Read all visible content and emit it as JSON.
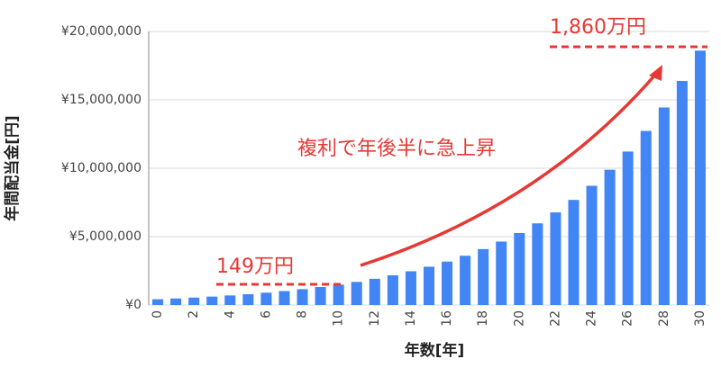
{
  "chart_data": {
    "type": "bar",
    "xlabel": "年数[年]",
    "ylabel": "年間配当金[円]",
    "annotations": [
      "149万円",
      "1,860万円",
      "複利で年後半に急上昇"
    ],
    "categories": [
      "0",
      null,
      "2",
      null,
      "4",
      null,
      "6",
      null,
      "8",
      null,
      "10",
      null,
      "12",
      null,
      "14",
      null,
      "16",
      null,
      "18",
      null,
      "20",
      null,
      "22",
      null,
      "24",
      null,
      "26",
      null,
      "28",
      null,
      "30"
    ],
    "values": [
      422000,
      479000,
      543000,
      616000,
      699000,
      793000,
      900000,
      1021000,
      1158000,
      1314000,
      1490000,
      1690000,
      1918000,
      2176000,
      2468000,
      2800000,
      3177000,
      3604000,
      4089000,
      4639000,
      5263000,
      5971000,
      6774000,
      7685000,
      8718000,
      9891000,
      11221000,
      12730000,
      14443000,
      16385000,
      18600000
    ],
    "color": "#4285f4",
    "ylim": [
      0,
      20000000
    ],
    "yticks": [
      {
        "value": 0,
        "label": "¥0"
      },
      {
        "value": 5000000,
        "label": "¥5,000,000"
      },
      {
        "value": 10000000,
        "label": "¥10,000,000"
      },
      {
        "value": 15000000,
        "label": "¥15,000,000"
      },
      {
        "value": 20000000,
        "label": "¥20,000,000"
      }
    ],
    "grid": true
  }
}
